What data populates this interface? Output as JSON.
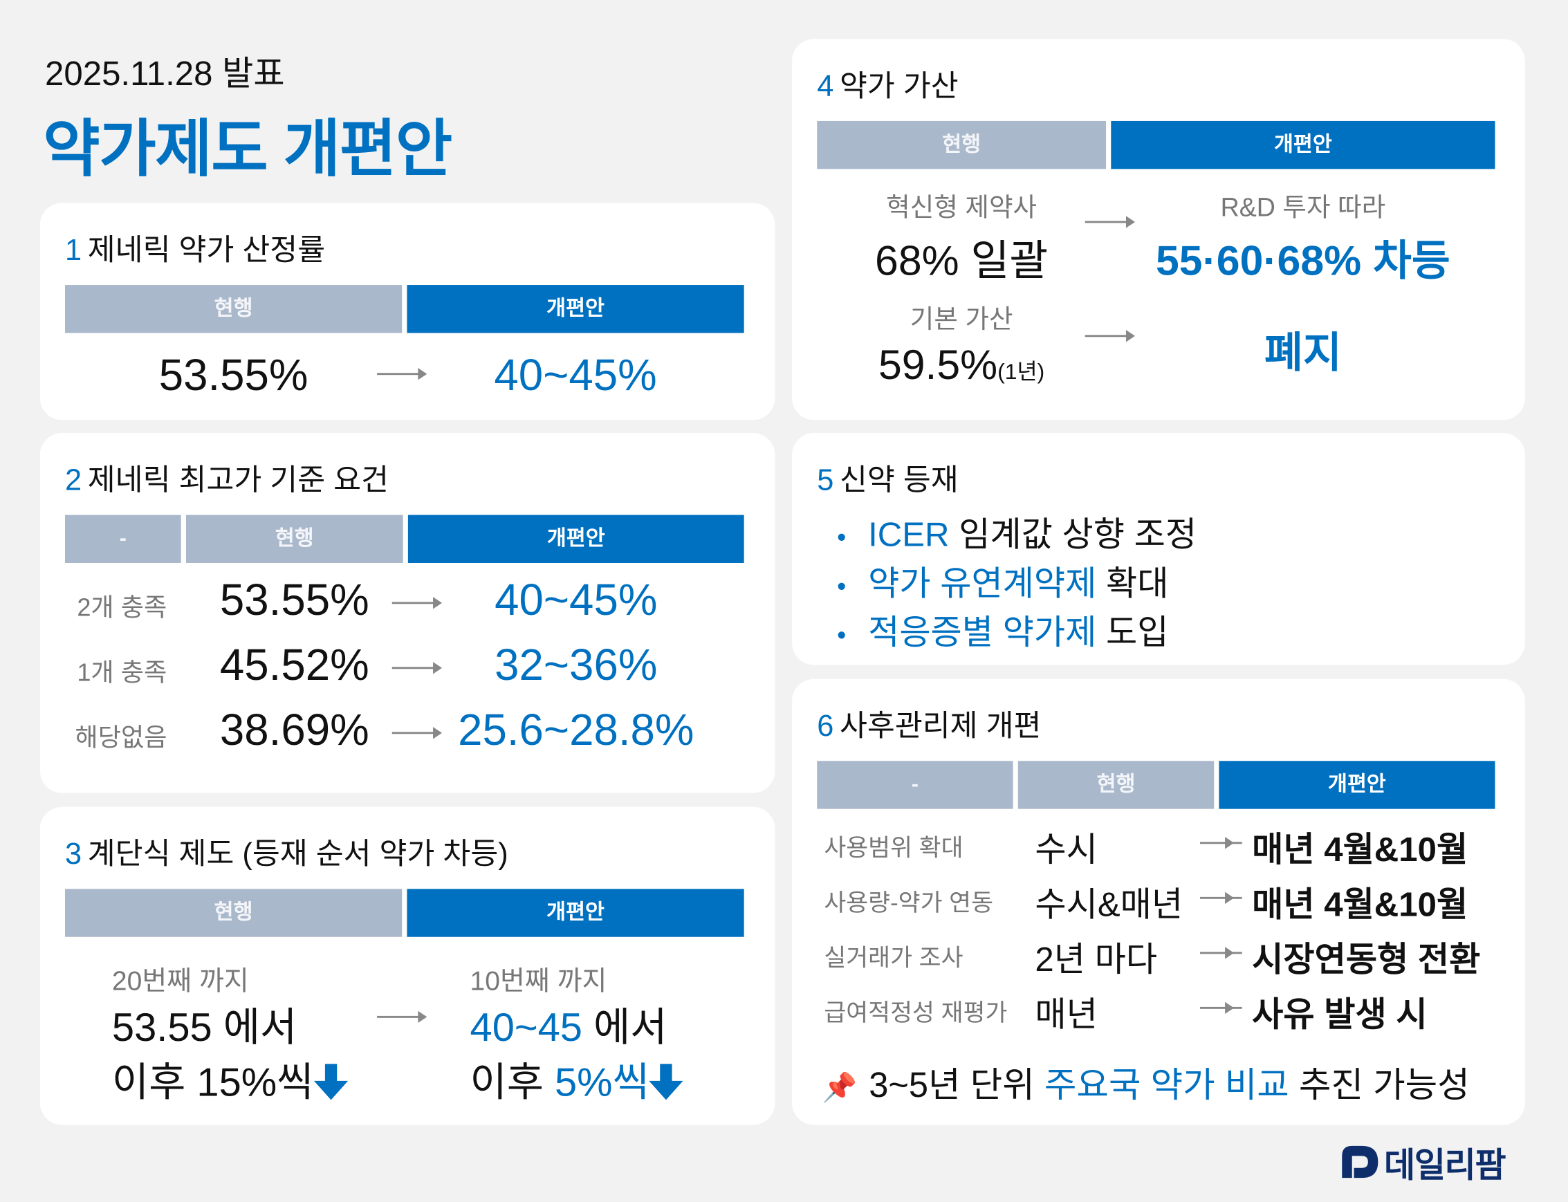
{
  "header": {
    "date": "2025.11.28 발표",
    "title": "약가제도 개편안"
  },
  "colors": {
    "accent": "#0070c0",
    "header_gray": "#aab8cc",
    "background": "#f2f2f2",
    "logo": "#0d2d6b"
  },
  "columns": {
    "dash": "-",
    "current": "현행",
    "reform": "개편안"
  },
  "s1": {
    "num": "1",
    "title": "제네릭 약가 산정률",
    "current": "53.55%",
    "reform": "40~45%"
  },
  "s2": {
    "num": "2",
    "title": "제네릭 최고가 기준 요건",
    "rows": [
      {
        "label": "2개 충족",
        "current": "53.55%",
        "reform": "40~45%"
      },
      {
        "label": "1개 충족",
        "current": "45.52%",
        "reform": "32~36%"
      },
      {
        "label": "해당없음",
        "current": "38.69%",
        "reform": "25.6~28.8%"
      }
    ]
  },
  "s3": {
    "num": "3",
    "title": "계단식 제도 (등재 순서 약가 차등)",
    "current": {
      "sub": "20번째 까지",
      "line1_val": "53.55",
      "line1_suffix": " 에서",
      "line2_prefix": "이후 ",
      "line2_val": "15%씩"
    },
    "reform": {
      "sub": "10번째 까지",
      "line1_val": "40~45",
      "line1_suffix": " 에서",
      "line2_prefix": "이후 ",
      "line2_val": "5%씩"
    }
  },
  "s4": {
    "num": "4",
    "title": "약가 가산",
    "rows": [
      {
        "label": "혁신형 제약사",
        "current": "68% 일괄",
        "current_note": "",
        "reform_label": "R&D 투자 따라",
        "reform": "55·60·68% 차등"
      },
      {
        "label": "기본 가산",
        "current": "59.5%",
        "current_note": "(1년)",
        "reform_label": "",
        "reform": "폐지"
      }
    ]
  },
  "s5": {
    "num": "5",
    "title": "신약 등재",
    "bullets": [
      {
        "blue": "ICER",
        "rest": " 임계값 상향 조정"
      },
      {
        "blue": "약가 유연계약제",
        "rest": " 확대"
      },
      {
        "blue": "적응증별 약가제",
        "rest": " 도입"
      }
    ]
  },
  "s6": {
    "num": "6",
    "title": "사후관리제 개편",
    "rows": [
      {
        "label": "사용범위 확대",
        "current": "수시",
        "reform": "매년 4월&10월"
      },
      {
        "label": "사용량-약가 연동",
        "current": "수시&매년",
        "reform": "매년 4월&10월"
      },
      {
        "label": "실거래가 조사",
        "current": "2년 마다",
        "reform": "시장연동형 전환"
      },
      {
        "label": "급여적정성 재평가",
        "current": "매년",
        "reform": "사유 발생 시"
      }
    ],
    "note": {
      "icon": "pushpin-icon",
      "pre": "3~5년 단위 ",
      "blue": "주요국 약가 비교",
      "post": " 추진 가능성"
    }
  },
  "logo": {
    "text": "데일리팜"
  }
}
